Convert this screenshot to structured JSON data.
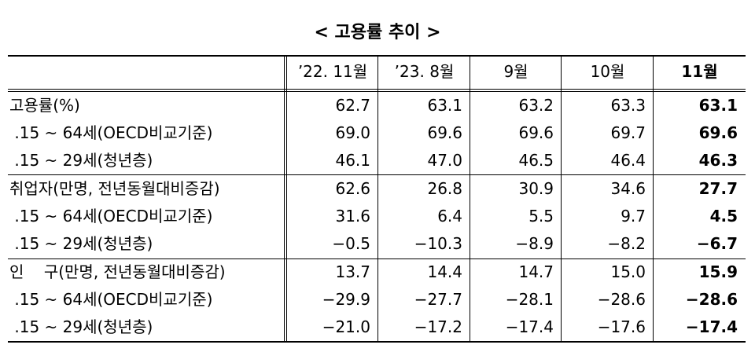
{
  "title": "< 고용률 추이 >",
  "table": {
    "header": [
      "’22. 11월",
      "’23. 8월",
      "9월",
      "10월",
      "11월"
    ],
    "rows": [
      {
        "label": "고용률(%)",
        "values": [
          "62.7",
          "63.1",
          "63.2",
          "63.3",
          "63.1"
        ]
      },
      {
        "label": " .15 ~ 64세(OECD비교기준)",
        "values": [
          "69.0",
          "69.6",
          "69.6",
          "69.7",
          "69.6"
        ]
      },
      {
        "label": " .15 ~ 29세(청년층)",
        "values": [
          "46.1",
          "47.0",
          "46.5",
          "46.4",
          "46.3"
        ]
      },
      {
        "label": "취업자(만명, 전년동월대비증감)",
        "values": [
          "62.6",
          "26.8",
          "30.9",
          "34.6",
          "27.7"
        ]
      },
      {
        "label": " .15 ~ 64세(OECD비교기준)",
        "values": [
          "31.6",
          "6.4",
          "5.5",
          "9.7",
          "4.5"
        ]
      },
      {
        "label": " .15 ~ 29세(청년층)",
        "values": [
          "−0.5",
          "−10.3",
          "−8.9",
          "−8.2",
          "−6.7"
        ]
      },
      {
        "label": "인    구(만명, 전년동월대비증감)",
        "values": [
          "13.7",
          "14.4",
          "14.7",
          "15.0",
          "15.9"
        ]
      },
      {
        "label": " .15 ~ 64세(OECD비교기준)",
        "values": [
          "−29.9",
          "−27.7",
          "−28.1",
          "−28.6",
          "−28.6"
        ]
      },
      {
        "label": " .15 ~ 29세(청년층)",
        "values": [
          "−21.0",
          "−17.2",
          "−17.4",
          "−17.6",
          "−17.4"
        ]
      }
    ]
  }
}
